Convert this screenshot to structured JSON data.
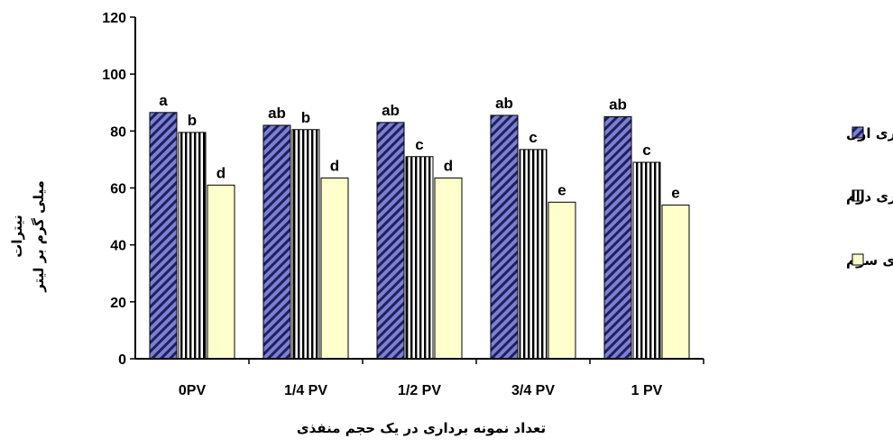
{
  "chart_data": {
    "type": "bar",
    "categories": [
      "0PV",
      "1/4 PV",
      "1/2 PV",
      "3/4 PV",
      "1 PV"
    ],
    "series": [
      {
        "name": "آبیاری اول",
        "values": [
          86.5,
          82,
          83,
          85.5,
          85
        ],
        "labels": [
          "a",
          "ab",
          "ab",
          "ab",
          "ab"
        ],
        "fill": "#7b7fd6",
        "pattern": "diagonal-stripes"
      },
      {
        "name": "آبیاری دوم",
        "values": [
          79.5,
          80.5,
          71,
          73.5,
          69
        ],
        "labels": [
          "b",
          "b",
          "c",
          "c",
          "c"
        ],
        "fill": "#ffffff",
        "pattern": "vertical-stripes"
      },
      {
        "name": "آبیاری سوم",
        "values": [
          61,
          63.5,
          63.5,
          55,
          54
        ],
        "labels": [
          "d",
          "d",
          "d",
          "e",
          "e"
        ],
        "fill": "#ffffcc",
        "pattern": "solid"
      }
    ],
    "ylim": [
      0,
      120
    ],
    "yticks": [
      0,
      20,
      40,
      60,
      80,
      100,
      120
    ],
    "xlabel": "تعداد نمونه برداری در یک حجم منفذی",
    "ylabel_line1": "نیترات",
    "ylabel_line2": "میلی گرم بر لیتر",
    "legend_position": "right",
    "grid": false
  }
}
